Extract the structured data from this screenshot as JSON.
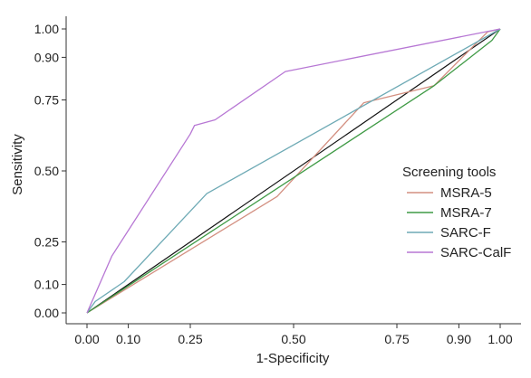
{
  "chart_data": {
    "type": "line",
    "title": "",
    "xlabel": "1-Specificity",
    "ylabel": "Sensitivity",
    "xlim": [
      0,
      1
    ],
    "ylim": [
      0,
      1
    ],
    "x_ticks": [
      0.0,
      0.1,
      0.25,
      0.5,
      0.75,
      0.9,
      1.0
    ],
    "x_tick_labels": [
      "0.00",
      "0.10",
      "0.25",
      "0.50",
      "0.75",
      "0.90",
      "1.00"
    ],
    "y_ticks": [
      0.0,
      0.1,
      0.25,
      0.5,
      0.75,
      0.9,
      1.0
    ],
    "y_tick_labels": [
      "0.00",
      "0.10",
      "0.25",
      "0.50",
      "0.75",
      "0.90",
      "1.00"
    ],
    "grid": false,
    "legend": {
      "title": "Screening tools",
      "placement": "right"
    },
    "reference_line": {
      "x": [
        0,
        1
      ],
      "y": [
        0,
        1
      ],
      "color": "#111111"
    },
    "series": [
      {
        "name": "MSRA-5",
        "color": "#d38f80",
        "x": [
          0.0,
          0.46,
          0.67,
          0.84,
          0.97,
          1.0
        ],
        "y": [
          0.0,
          0.41,
          0.74,
          0.8,
          0.99,
          1.0
        ]
      },
      {
        "name": "MSRA-7",
        "color": "#3f9a45",
        "x": [
          0.0,
          0.84,
          0.98,
          1.0
        ],
        "y": [
          0.0,
          0.8,
          0.96,
          1.0
        ]
      },
      {
        "name": "SARC-F",
        "color": "#6eaab5",
        "x": [
          0.0,
          0.02,
          0.09,
          0.29,
          1.0
        ],
        "y": [
          0.0,
          0.04,
          0.11,
          0.42,
          1.0
        ]
      },
      {
        "name": "SARC-CalF",
        "color": "#b777d4",
        "x": [
          0.0,
          0.06,
          0.25,
          0.26,
          0.31,
          0.48,
          1.0
        ],
        "y": [
          0.0,
          0.2,
          0.63,
          0.66,
          0.68,
          0.85,
          1.0
        ]
      }
    ]
  }
}
